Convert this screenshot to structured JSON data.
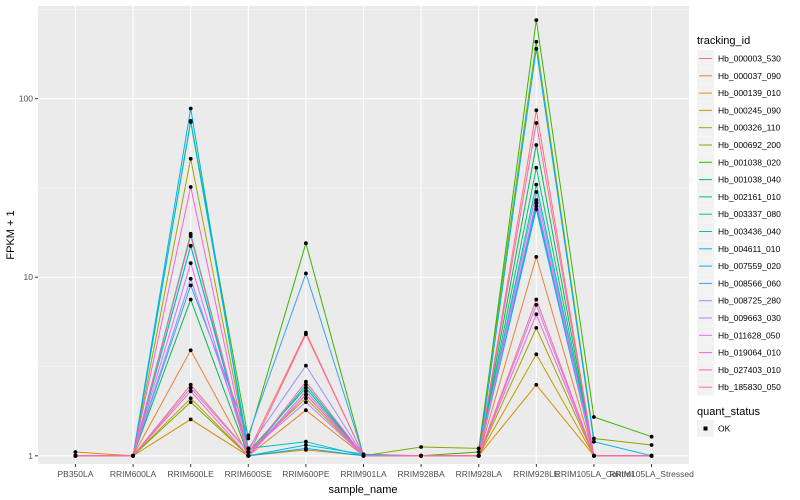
{
  "chart_data": {
    "type": "line",
    "xlabel": "sample_name",
    "ylabel": "FPKM + 1",
    "y_scale": "log10",
    "ylim": [
      0.9,
      330
    ],
    "y_ticks": [
      1,
      10,
      100
    ],
    "y_tick_labels": [
      "1",
      "10",
      "100"
    ],
    "grid": true,
    "legend_placement": "right",
    "categories": [
      "PB350LA",
      "RRIM600LA",
      "RRIM600LE",
      "RRIM600SE",
      "RRIM600PE",
      "RRIM901LA",
      "RRIM928BA",
      "RRIM928LA",
      "RRIM928LE",
      "RRIM105LA_Control",
      "RRIM105LA_Stressed"
    ],
    "legend_title": "tracking_id",
    "series": [
      {
        "name": "Hb_000003_530",
        "color": "#F8766D",
        "values": [
          1.0,
          1.0,
          2.5,
          1.05,
          4.9,
          1.0,
          1.0,
          1.0,
          86,
          1.0,
          1.0
        ]
      },
      {
        "name": "Hb_000037_090",
        "color": "#EA8331",
        "values": [
          1.0,
          1.0,
          3.9,
          1.0,
          1.8,
          1.0,
          1.0,
          1.0,
          13,
          1.0,
          1.0
        ]
      },
      {
        "name": "Hb_000139_010",
        "color": "#D89000",
        "values": [
          1.05,
          1.0,
          1.6,
          1.0,
          1.08,
          1.0,
          1.0,
          1.0,
          2.5,
          1.0,
          1.0
        ]
      },
      {
        "name": "Hb_000245_090",
        "color": "#C09B00",
        "values": [
          1.0,
          1.0,
          2.1,
          1.0,
          2.2,
          1.0,
          1.0,
          1.0,
          3.7,
          1.0,
          1.0
        ]
      },
      {
        "name": "Hb_000326_110",
        "color": "#A3A500",
        "values": [
          1.0,
          1.0,
          46,
          1.05,
          2.1,
          1.0,
          1.0,
          1.0,
          5.2,
          1.0,
          1.0
        ]
      },
      {
        "name": "Hb_000692_200",
        "color": "#7CAE00",
        "values": [
          1.0,
          1.0,
          2.0,
          1.0,
          2.2,
          1.0,
          1.12,
          1.1,
          208,
          1.25,
          1.15
        ]
      },
      {
        "name": "Hb_001038_020",
        "color": "#39B600",
        "values": [
          1.0,
          1.0,
          75,
          1.25,
          15.5,
          1.0,
          1.0,
          1.05,
          275,
          1.65,
          1.28
        ]
      },
      {
        "name": "Hb_001038_040",
        "color": "#00BB4E",
        "values": [
          1.0,
          1.0,
          7.5,
          1.0,
          2.3,
          1.0,
          1.0,
          1.0,
          55,
          1.0,
          1.0
        ]
      },
      {
        "name": "Hb_002161_010",
        "color": "#00BF7D",
        "values": [
          1.0,
          1.0,
          15,
          1.05,
          2.4,
          1.0,
          1.0,
          1.0,
          41,
          1.0,
          1.0
        ]
      },
      {
        "name": "Hb_003337_080",
        "color": "#00C1A3",
        "values": [
          1.0,
          1.0,
          17.5,
          1.0,
          2.5,
          1.0,
          1.0,
          1.0,
          33,
          1.0,
          1.0
        ]
      },
      {
        "name": "Hb_003436_040",
        "color": "#00BFC4",
        "values": [
          1.0,
          1.0,
          74,
          1.1,
          1.2,
          1.0,
          1.0,
          1.0,
          25,
          1.0,
          1.0
        ]
      },
      {
        "name": "Hb_004611_010",
        "color": "#00BAE0",
        "values": [
          1.0,
          1.0,
          15,
          1.0,
          1.15,
          1.02,
          1.0,
          1.0,
          24,
          1.0,
          1.0
        ]
      },
      {
        "name": "Hb_007559_020",
        "color": "#00B0F6",
        "values": [
          1.0,
          1.0,
          88,
          1.0,
          1.1,
          1.0,
          1.0,
          1.0,
          190,
          1.2,
          1.0
        ]
      },
      {
        "name": "Hb_008566_060",
        "color": "#35A2FF",
        "values": [
          1.0,
          1.0,
          9.0,
          1.3,
          10.5,
          1.0,
          1.0,
          1.0,
          26,
          1.0,
          1.0
        ]
      },
      {
        "name": "Hb_008725_280",
        "color": "#9590FF",
        "values": [
          1.0,
          1.0,
          9.8,
          1.1,
          3.2,
          1.0,
          1.0,
          1.0,
          30,
          1.0,
          1.0
        ]
      },
      {
        "name": "Hb_009663_030",
        "color": "#C77CFF",
        "values": [
          1.0,
          1.0,
          2.4,
          1.05,
          2.0,
          1.0,
          1.0,
          1.0,
          7.0,
          1.0,
          1.0
        ]
      },
      {
        "name": "Hb_011628_050",
        "color": "#E76BF3",
        "values": [
          1.0,
          1.0,
          12,
          1.0,
          2.3,
          1.0,
          1.0,
          1.0,
          27,
          1.0,
          1.0
        ]
      },
      {
        "name": "Hb_019064_010",
        "color": "#FA62DB",
        "values": [
          1.0,
          1.0,
          32,
          1.0,
          2.2,
          1.0,
          1.0,
          1.0,
          6.2,
          1.0,
          1.0
        ]
      },
      {
        "name": "Hb_027403_010",
        "color": "#FF62BC",
        "values": [
          1.0,
          1.0,
          2.3,
          1.0,
          2.6,
          1.0,
          1.0,
          1.0,
          73,
          1.0,
          1.0
        ]
      },
      {
        "name": "Hb_185830_050",
        "color": "#FF6C91",
        "values": [
          1.0,
          1.0,
          17,
          1.0,
          4.8,
          1.0,
          1.0,
          1.0,
          7.5,
          1.0,
          1.0
        ]
      }
    ],
    "legend2": {
      "title": "quant_status",
      "entries": [
        {
          "label": "OK",
          "symbol": "point"
        }
      ]
    }
  }
}
